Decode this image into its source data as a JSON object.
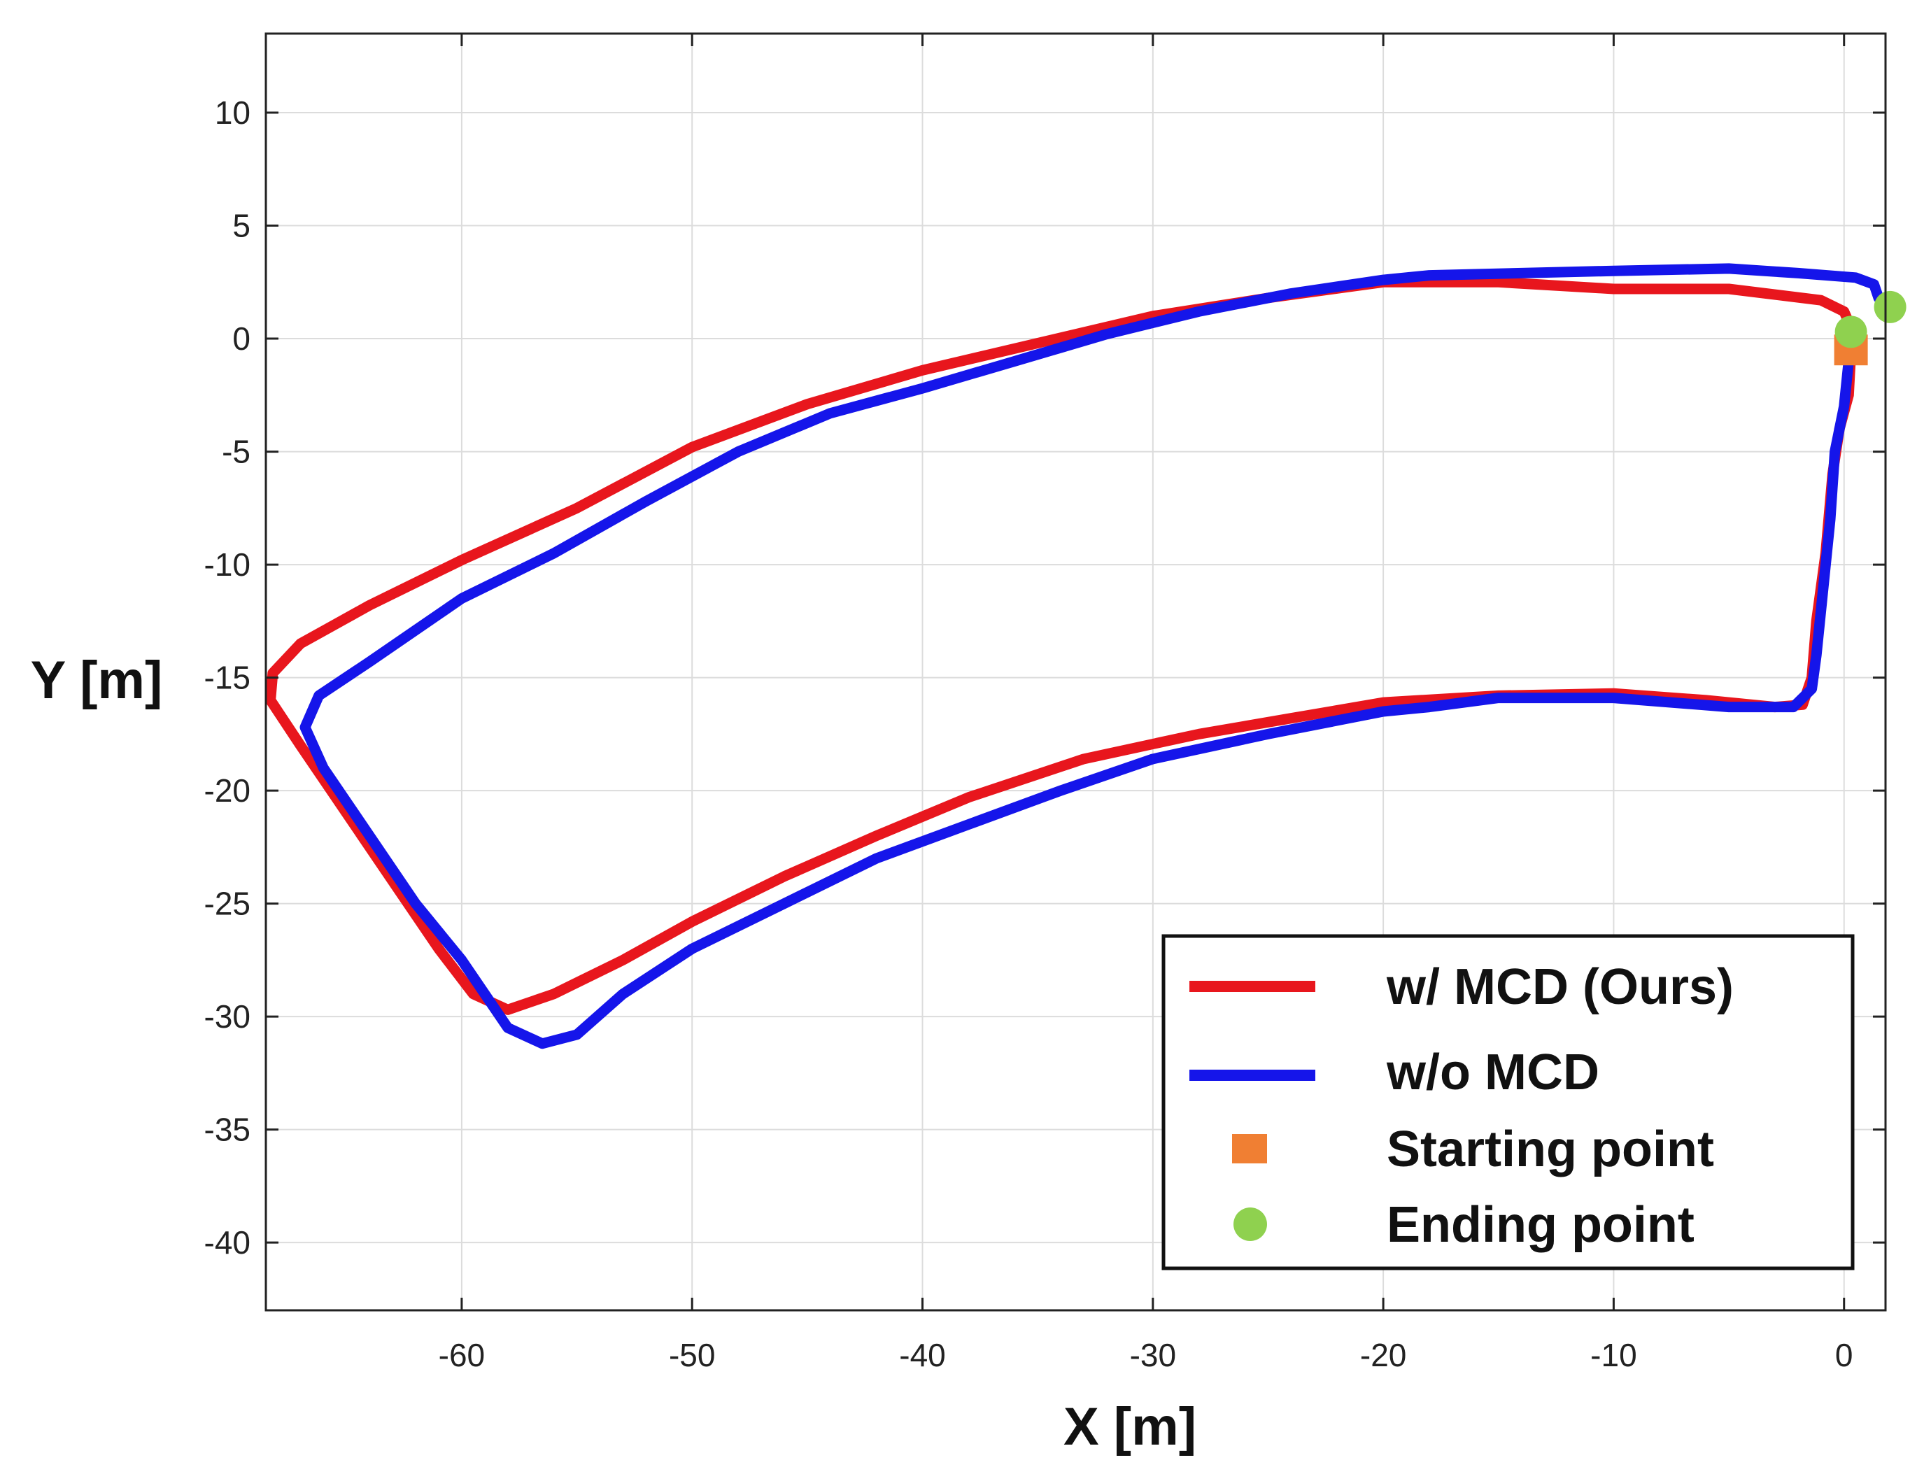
{
  "chart_data": {
    "type": "line",
    "title": "",
    "xlabel": "X [m]",
    "ylabel": "Y [m]",
    "xlim": [
      -68.5,
      1.8
    ],
    "ylim": [
      -43,
      13.5
    ],
    "xticks": [
      -60,
      -50,
      -40,
      -30,
      -20,
      -10,
      0
    ],
    "yticks": [
      10,
      5,
      0,
      -5,
      -10,
      -15,
      -20,
      -25,
      -30,
      -35,
      -40
    ],
    "xtick_labels": [
      "-60",
      "-50",
      "-40",
      "-30",
      "-20",
      "-10",
      "0"
    ],
    "ytick_labels": [
      "10",
      "5",
      "0",
      "-5",
      "-10",
      "-15",
      "-20",
      "-25",
      "-30",
      "-35",
      "-40"
    ],
    "grid": true,
    "legend_position": "bottom-right",
    "series": [
      {
        "name": "w/ MCD (Ours)",
        "color": "#e8161d",
        "points": [
          [
            0.3,
            -0.6
          ],
          [
            0.2,
            -2.5
          ],
          [
            -0.2,
            -4.0
          ],
          [
            -0.5,
            -6.0
          ],
          [
            -0.8,
            -9.5
          ],
          [
            -1.2,
            -12.5
          ],
          [
            -1.4,
            -15.0
          ],
          [
            -1.8,
            -16.2
          ],
          [
            -3.0,
            -16.3
          ],
          [
            -6.0,
            -16.0
          ],
          [
            -10.0,
            -15.7
          ],
          [
            -15.0,
            -15.8
          ],
          [
            -20.0,
            -16.1
          ],
          [
            -24.0,
            -16.8
          ],
          [
            -28.0,
            -17.5
          ],
          [
            -33.0,
            -18.6
          ],
          [
            -38.0,
            -20.3
          ],
          [
            -42.0,
            -22.0
          ],
          [
            -46.0,
            -23.8
          ],
          [
            -50.0,
            -25.8
          ],
          [
            -53.0,
            -27.5
          ],
          [
            -56.0,
            -29.0
          ],
          [
            -58.0,
            -29.7
          ],
          [
            -59.5,
            -29.0
          ],
          [
            -61.0,
            -27.0
          ],
          [
            -63.0,
            -24.0
          ],
          [
            -65.0,
            -21.0
          ],
          [
            -67.0,
            -18.0
          ],
          [
            -68.3,
            -16.0
          ],
          [
            -68.2,
            -14.8
          ],
          [
            -67.0,
            -13.5
          ],
          [
            -64.0,
            -11.8
          ],
          [
            -60.0,
            -9.8
          ],
          [
            -55.0,
            -7.5
          ],
          [
            -50.0,
            -4.8
          ],
          [
            -45.0,
            -2.9
          ],
          [
            -40.0,
            -1.4
          ],
          [
            -35.0,
            -0.2
          ],
          [
            -30.0,
            1.0
          ],
          [
            -25.0,
            1.8
          ],
          [
            -20.0,
            2.5
          ],
          [
            -15.0,
            2.5
          ],
          [
            -10.0,
            2.2
          ],
          [
            -5.0,
            2.2
          ],
          [
            -1.0,
            1.7
          ],
          [
            0.0,
            1.2
          ],
          [
            0.3,
            0.5
          ],
          [
            0.3,
            0.3
          ]
        ]
      },
      {
        "name": "w/o MCD",
        "color": "#1515ea",
        "points": [
          [
            0.2,
            -1.0
          ],
          [
            0.0,
            -3.0
          ],
          [
            -0.4,
            -5.0
          ],
          [
            -0.6,
            -8.0
          ],
          [
            -0.9,
            -11.0
          ],
          [
            -1.2,
            -14.0
          ],
          [
            -1.4,
            -15.5
          ],
          [
            -2.2,
            -16.3
          ],
          [
            -5.0,
            -16.3
          ],
          [
            -10.0,
            -15.9
          ],
          [
            -15.0,
            -15.9
          ],
          [
            -18.0,
            -16.3
          ],
          [
            -20.0,
            -16.5
          ],
          [
            -25.0,
            -17.5
          ],
          [
            -30.0,
            -18.6
          ],
          [
            -34.0,
            -20.0
          ],
          [
            -38.0,
            -21.5
          ],
          [
            -42.0,
            -23.0
          ],
          [
            -46.0,
            -25.0
          ],
          [
            -50.0,
            -27.0
          ],
          [
            -53.0,
            -29.0
          ],
          [
            -55.0,
            -30.8
          ],
          [
            -56.5,
            -31.2
          ],
          [
            -58.0,
            -30.5
          ],
          [
            -60.0,
            -27.5
          ],
          [
            -62.0,
            -25.0
          ],
          [
            -64.0,
            -22.0
          ],
          [
            -66.0,
            -19.0
          ],
          [
            -66.8,
            -17.2
          ],
          [
            -66.2,
            -15.8
          ],
          [
            -64.0,
            -14.3
          ],
          [
            -60.0,
            -11.5
          ],
          [
            -56.0,
            -9.5
          ],
          [
            -52.0,
            -7.2
          ],
          [
            -48.0,
            -5.0
          ],
          [
            -44.0,
            -3.3
          ],
          [
            -40.0,
            -2.2
          ],
          [
            -36.0,
            -1.0
          ],
          [
            -32.0,
            0.2
          ],
          [
            -28.0,
            1.2
          ],
          [
            -24.0,
            2.0
          ],
          [
            -20.0,
            2.6
          ],
          [
            -18.0,
            2.8
          ],
          [
            -10.0,
            3.0
          ],
          [
            -5.0,
            3.1
          ],
          [
            -2.0,
            2.9
          ],
          [
            0.5,
            2.7
          ],
          [
            1.3,
            2.4
          ],
          [
            1.5,
            1.8
          ],
          [
            1.8,
            1.5
          ]
        ]
      }
    ],
    "markers": [
      {
        "name": "Starting point",
        "shape": "square",
        "color": "#f07f33",
        "points": [
          [
            0.3,
            -0.5
          ]
        ]
      },
      {
        "name": "Ending point",
        "shape": "circle",
        "color": "#8fd14f",
        "points": [
          [
            0.3,
            0.3
          ],
          [
            2.0,
            1.4
          ]
        ]
      }
    ],
    "legend": [
      {
        "label": "w/ MCD (Ours)",
        "kind": "line",
        "color": "#e8161d"
      },
      {
        "label": "w/o MCD",
        "kind": "line",
        "color": "#1515ea"
      },
      {
        "label": "Starting point",
        "kind": "square",
        "color": "#f07f33"
      },
      {
        "label": "Ending point",
        "kind": "circle",
        "color": "#8fd14f"
      }
    ]
  }
}
